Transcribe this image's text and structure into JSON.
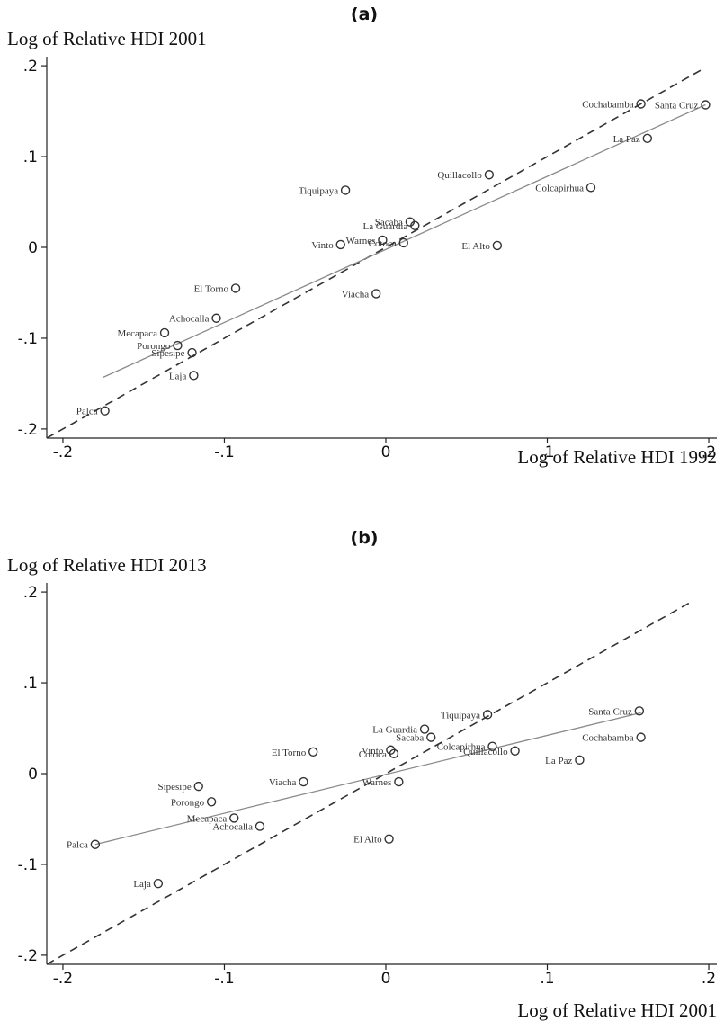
{
  "chart_data": [
    {
      "type": "scatter",
      "panel_label": "(a)",
      "ylabel": "Log of Relative HDI 2001",
      "xlabel": "Log of Relative HDI 1992",
      "xlim": [
        -0.21,
        0.205
      ],
      "ylim": [
        -0.21,
        0.21
      ],
      "xticks": [
        -0.2,
        -0.1,
        0,
        0.1,
        0.2
      ],
      "xtick_labels": [
        "-.2",
        "-.1",
        "0",
        ".1",
        ".2"
      ],
      "yticks": [
        -0.2,
        -0.1,
        0,
        0.1,
        0.2
      ],
      "ytick_labels": [
        "-.2",
        "-.1",
        "0",
        ".1",
        ".2"
      ],
      "points": [
        {
          "label": "Cochabamba",
          "x": 0.158,
          "y": 0.158
        },
        {
          "label": "Santa Cruz",
          "x": 0.198,
          "y": 0.157
        },
        {
          "label": "La Paz",
          "x": 0.162,
          "y": 0.12
        },
        {
          "label": "Quillacollo",
          "x": 0.064,
          "y": 0.08
        },
        {
          "label": "Colcapirhua",
          "x": 0.127,
          "y": 0.066
        },
        {
          "label": "Tiquipaya",
          "x": -0.025,
          "y": 0.063
        },
        {
          "label": "Sacaba",
          "x": 0.015,
          "y": 0.028
        },
        {
          "label": "La Guardia",
          "x": 0.018,
          "y": 0.024
        },
        {
          "label": "Warnes",
          "x": -0.002,
          "y": 0.008
        },
        {
          "label": "Vinto",
          "x": -0.028,
          "y": 0.003
        },
        {
          "label": "Cotoca",
          "x": 0.011,
          "y": 0.005
        },
        {
          "label": "El Alto",
          "x": 0.069,
          "y": 0.002
        },
        {
          "label": "El Torno",
          "x": -0.093,
          "y": -0.045
        },
        {
          "label": "Viacha",
          "x": -0.006,
          "y": -0.051
        },
        {
          "label": "Achocalla",
          "x": -0.105,
          "y": -0.078
        },
        {
          "label": "Mecapaca",
          "x": -0.137,
          "y": -0.094
        },
        {
          "label": "Porongo",
          "x": -0.129,
          "y": -0.108
        },
        {
          "label": "Sipesipe",
          "x": -0.12,
          "y": -0.116
        },
        {
          "label": "Laja",
          "x": -0.119,
          "y": -0.141
        },
        {
          "label": "Palca",
          "x": -0.174,
          "y": -0.18
        }
      ],
      "fit_line": {
        "x": [
          -0.175,
          0.198
        ],
        "y": [
          -0.143,
          0.157
        ]
      },
      "diagonal": {
        "x": [
          -0.21,
          0.197
        ],
        "y": [
          -0.21,
          0.197
        ]
      }
    },
    {
      "type": "scatter",
      "panel_label": "(b)",
      "ylabel": "Log of Relative HDI 2013",
      "xlabel": "Log of Relative HDI 2001",
      "xlim": [
        -0.21,
        0.205
      ],
      "ylim": [
        -0.21,
        0.21
      ],
      "xticks": [
        -0.2,
        -0.1,
        0,
        0.1,
        0.2
      ],
      "xtick_labels": [
        "-.2",
        "-.1",
        "0",
        ".1",
        ".2"
      ],
      "yticks": [
        -0.2,
        -0.1,
        0,
        0.1,
        0.2
      ],
      "ytick_labels": [
        "-.2",
        "-.1",
        "0",
        ".1",
        ".2"
      ],
      "points": [
        {
          "label": "Santa Cruz",
          "x": 0.157,
          "y": 0.069
        },
        {
          "label": "Cochabamba",
          "x": 0.158,
          "y": 0.04
        },
        {
          "label": "Tiquipaya",
          "x": 0.063,
          "y": 0.065
        },
        {
          "label": "La Guardia",
          "x": 0.024,
          "y": 0.049
        },
        {
          "label": "Sacaba",
          "x": 0.028,
          "y": 0.04
        },
        {
          "label": "Colcapirhua",
          "x": 0.066,
          "y": 0.03
        },
        {
          "label": "Quillacollo",
          "x": 0.08,
          "y": 0.025
        },
        {
          "label": "La Paz",
          "x": 0.12,
          "y": 0.015
        },
        {
          "label": "El Torno",
          "x": -0.045,
          "y": 0.024
        },
        {
          "label": "Vinto",
          "x": 0.003,
          "y": 0.026
        },
        {
          "label": "Cotoca",
          "x": 0.005,
          "y": 0.022
        },
        {
          "label": "Viacha",
          "x": -0.051,
          "y": -0.009
        },
        {
          "label": "Warnes",
          "x": 0.008,
          "y": -0.009
        },
        {
          "label": "Sipesipe",
          "x": -0.116,
          "y": -0.014
        },
        {
          "label": "Porongo",
          "x": -0.108,
          "y": -0.031
        },
        {
          "label": "Mecapaca",
          "x": -0.094,
          "y": -0.049
        },
        {
          "label": "Achocalla",
          "x": -0.078,
          "y": -0.058
        },
        {
          "label": "El Alto",
          "x": 0.002,
          "y": -0.072
        },
        {
          "label": "Palca",
          "x": -0.18,
          "y": -0.078
        },
        {
          "label": "Laja",
          "x": -0.141,
          "y": -0.121
        }
      ],
      "fit_line": {
        "x": [
          -0.18,
          0.158
        ],
        "y": [
          -0.078,
          0.067
        ]
      },
      "diagonal": {
        "x": [
          -0.21,
          0.188
        ],
        "y": [
          -0.21,
          0.188
        ]
      }
    }
  ]
}
